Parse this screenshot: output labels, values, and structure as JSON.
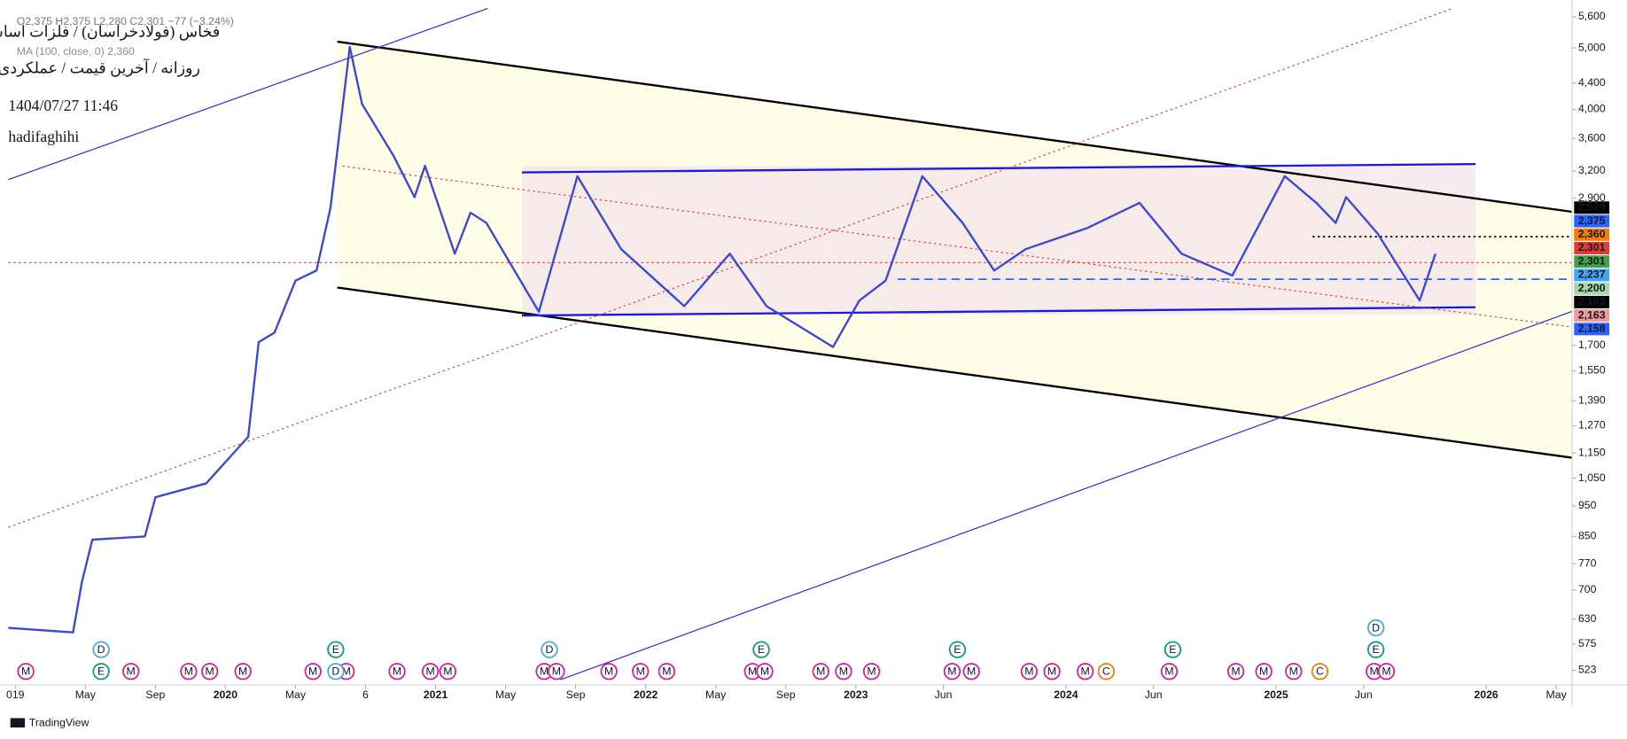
{
  "header": {
    "symbol": "فخاس (فولادخراسان) / فلزات اساسی",
    "settings": "روزانه / آخرین قیمت / عملکردی",
    "datetime": "1404/07/27 11:46",
    "author": "hadifaghihi",
    "ohlc": "O2,375 H2,375 L2,280 C2,301 −77 (−3.24%)",
    "indicator": "MA (100, close, 0) 2,360"
  },
  "footer": {
    "brand": "TradingView"
  },
  "chart_data": {
    "type": "line",
    "color": "#3a46d8",
    "log_scale": true,
    "x": [
      -0.4,
      3.3,
      3.8,
      4.4,
      7.4,
      8.0,
      10.9,
      13.3,
      13.9,
      14.8,
      16.0,
      17.2,
      18.0,
      19.1,
      19.8,
      21.6,
      22.8,
      23.4,
      25.1,
      26.0,
      26.9,
      29.9,
      32.1,
      34.6,
      38.2,
      40.8,
      42.9,
      46.7,
      48.2,
      49.7,
      51.8,
      54.1,
      55.9,
      57.7,
      61.2,
      64.2,
      66.6,
      69.5,
      72.5,
      74.3,
      75.4,
      76.0,
      77.8,
      80.2,
      81.1
    ],
    "values": [
      610,
      600,
      720,
      840,
      850,
      980,
      1030,
      1220,
      1720,
      1780,
      2150,
      2230,
      2800,
      5020,
      4080,
      3380,
      2910,
      3260,
      2370,
      2750,
      2650,
      1920,
      3140,
      2410,
      1960,
      2370,
      1960,
      1690,
      2000,
      2150,
      3140,
      2650,
      2230,
      2410,
      2600,
      2850,
      2370,
      2190,
      3140,
      2850,
      2650,
      2910,
      2550,
      2000,
      2370
    ],
    "xlim": [
      -0.4,
      88.9
    ],
    "ylim": [
      496,
      5770
    ],
    "xticks": [
      {
        "value": 0,
        "label": "019"
      },
      {
        "value": 4,
        "label": "May"
      },
      {
        "value": 8,
        "label": "Sep"
      },
      {
        "value": 12,
        "label": "2020"
      },
      {
        "value": 16,
        "label": "May"
      },
      {
        "value": 20,
        "label": "6"
      },
      {
        "value": 24,
        "label": "2021"
      },
      {
        "value": 28,
        "label": "May"
      },
      {
        "value": 32,
        "label": "Sep"
      },
      {
        "value": 36,
        "label": "2022"
      },
      {
        "value": 40,
        "label": "May"
      },
      {
        "value": 44,
        "label": "Sep"
      },
      {
        "value": 48,
        "label": "2023"
      },
      {
        "value": 53,
        "label": "Jun"
      },
      {
        "value": 60,
        "label": "2024"
      },
      {
        "value": 65,
        "label": "Jun"
      },
      {
        "value": 72,
        "label": "2025"
      },
      {
        "value": 77,
        "label": "Jun"
      },
      {
        "value": 84,
        "label": "2026"
      },
      {
        "value": 88,
        "label": "May"
      }
    ],
    "yticks": [
      {
        "value": 5600,
        "label": "5,600"
      },
      {
        "value": 5000,
        "label": "5,000"
      },
      {
        "value": 4400,
        "label": "4,400"
      },
      {
        "value": 4000,
        "label": "4,000"
      },
      {
        "value": 3600,
        "label": "3,600"
      },
      {
        "value": 3200,
        "label": "3,200"
      },
      {
        "value": 2900,
        "label": "2,900"
      },
      {
        "value": 1700,
        "label": "1,700"
      },
      {
        "value": 1550,
        "label": "1,550"
      },
      {
        "value": 1390,
        "label": "1,390"
      },
      {
        "value": 1270,
        "label": "1,270"
      },
      {
        "value": 1150,
        "label": "1,150"
      },
      {
        "value": 1050,
        "label": "1,050"
      },
      950,
      850,
      770,
      700,
      630,
      575,
      523
    ],
    "price_labels": [
      {
        "label": "2,529",
        "color": "#000000"
      },
      {
        "label": "2,375",
        "color": "#2962ff"
      },
      {
        "label": "2,360",
        "color": "#f57c00"
      },
      {
        "label": "2,301",
        "color": "#e53935"
      },
      {
        "label": "2,301",
        "color": "#43a047"
      },
      {
        "label": "2,237",
        "color": "#42a5f5"
      },
      {
        "label": "2,200",
        "color": "#a5d6a7"
      },
      {
        "label": "2,163",
        "color": "#000000"
      },
      {
        "label": "2,163",
        "color": "#ef9a9a"
      },
      {
        "label": "2,158",
        "color": "#2962ff"
      }
    ],
    "events": [
      {
        "x": 0.6,
        "label": "M"
      },
      {
        "x": 4.9,
        "label": "E"
      },
      {
        "x": 4.9,
        "label": "D"
      },
      {
        "x": 6.6,
        "label": "M"
      },
      {
        "x": 9.9,
        "label": "M"
      },
      {
        "x": 11.1,
        "label": "M"
      },
      {
        "x": 13.0,
        "label": "M"
      },
      {
        "x": 17.0,
        "label": "M"
      },
      {
        "x": 18.9,
        "label": "M"
      },
      {
        "x": 18.3,
        "label": "D"
      },
      {
        "x": 18.3,
        "label": "E"
      },
      {
        "x": 21.8,
        "label": "M"
      },
      {
        "x": 23.7,
        "label": "M"
      },
      {
        "x": 24.7,
        "label": "M"
      },
      {
        "x": 30.2,
        "label": "M"
      },
      {
        "x": 30.9,
        "label": "M"
      },
      {
        "x": 30.5,
        "label": "D"
      },
      {
        "x": 33.9,
        "label": "M"
      },
      {
        "x": 35.7,
        "label": "M"
      },
      {
        "x": 37.2,
        "label": "M"
      },
      {
        "x": 42.1,
        "label": "M"
      },
      {
        "x": 42.8,
        "label": "M"
      },
      {
        "x": 42.6,
        "label": "E"
      },
      {
        "x": 46.0,
        "label": "M"
      },
      {
        "x": 47.3,
        "label": "M"
      },
      {
        "x": 48.9,
        "label": "M"
      },
      {
        "x": 53.5,
        "label": "M"
      },
      {
        "x": 54.6,
        "label": "M"
      },
      {
        "x": 53.8,
        "label": "E"
      },
      {
        "x": 57.9,
        "label": "M"
      },
      {
        "x": 59.2,
        "label": "M"
      },
      {
        "x": 61.1,
        "label": "M"
      },
      {
        "x": 62.3,
        "label": "C"
      },
      {
        "x": 65.9,
        "label": "M"
      },
      {
        "x": 66.1,
        "label": "E"
      },
      {
        "x": 69.7,
        "label": "M"
      },
      {
        "x": 71.3,
        "label": "M"
      },
      {
        "x": 73.0,
        "label": "M"
      },
      {
        "x": 74.5,
        "label": "C"
      },
      {
        "x": 77.6,
        "label": "M"
      },
      {
        "x": 78.3,
        "label": "M"
      },
      {
        "x": 77.7,
        "label": "E"
      },
      {
        "x": 77.7,
        "label": "D"
      }
    ]
  }
}
